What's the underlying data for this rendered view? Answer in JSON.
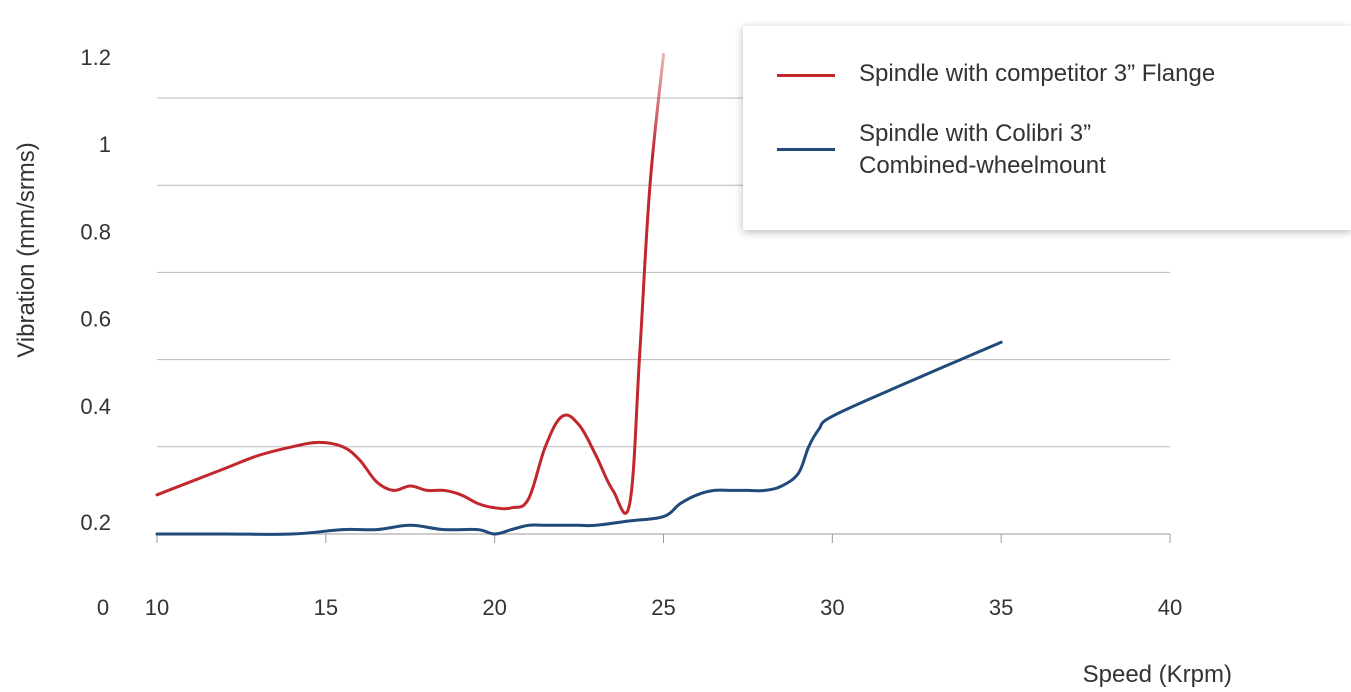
{
  "chart_data": {
    "type": "line",
    "title": "",
    "xlabel": "Speed (Krpm)",
    "ylabel": "Vibration (mm/srms)",
    "x_zero_label": "0",
    "x_ticks": [
      "10",
      "15",
      "20",
      "25",
      "30",
      "35",
      "40"
    ],
    "y_ticks": [
      "0.2",
      "0.4",
      "0.6",
      "0.8",
      "1",
      "1.2"
    ],
    "xlim": [
      10,
      40
    ],
    "ylim": [
      0.2,
      1.2
    ],
    "grid": "horizontal",
    "legend_position": "top-right",
    "series": [
      {
        "name": "Spindle with competitor 3” Flange",
        "color": "#c1272d",
        "x": [
          10,
          11,
          12,
          13,
          14,
          14.8,
          15.5,
          16,
          16.5,
          17,
          17.5,
          18,
          18.5,
          19,
          19.5,
          20,
          20.5,
          21,
          21.5,
          22,
          22.5,
          23,
          23.5,
          24,
          24.3,
          24.6,
          25
        ],
        "y": [
          0.29,
          0.32,
          0.35,
          0.38,
          0.4,
          0.41,
          0.4,
          0.37,
          0.32,
          0.3,
          0.31,
          0.3,
          0.3,
          0.29,
          0.27,
          0.26,
          0.26,
          0.28,
          0.4,
          0.47,
          0.45,
          0.38,
          0.3,
          0.27,
          0.62,
          1.0,
          1.3
        ]
      },
      {
        "name": "Spindle with Colibri 3” Combined-wheelmount",
        "color": "#1f4a7a",
        "x": [
          10,
          12,
          14,
          15.5,
          16.5,
          17.5,
          18.5,
          19.5,
          20,
          20.5,
          21,
          21.5,
          22,
          22.5,
          23,
          24,
          25,
          25.5,
          26,
          26.5,
          27,
          27.5,
          28,
          28.5,
          29,
          29.3,
          29.6,
          30,
          32,
          35
        ],
        "y": [
          0.2,
          0.2,
          0.2,
          0.21,
          0.21,
          0.22,
          0.21,
          0.21,
          0.2,
          0.21,
          0.22,
          0.22,
          0.22,
          0.22,
          0.22,
          0.23,
          0.24,
          0.27,
          0.29,
          0.3,
          0.3,
          0.3,
          0.3,
          0.31,
          0.34,
          0.4,
          0.44,
          0.47,
          0.54,
          0.64
        ]
      }
    ]
  }
}
